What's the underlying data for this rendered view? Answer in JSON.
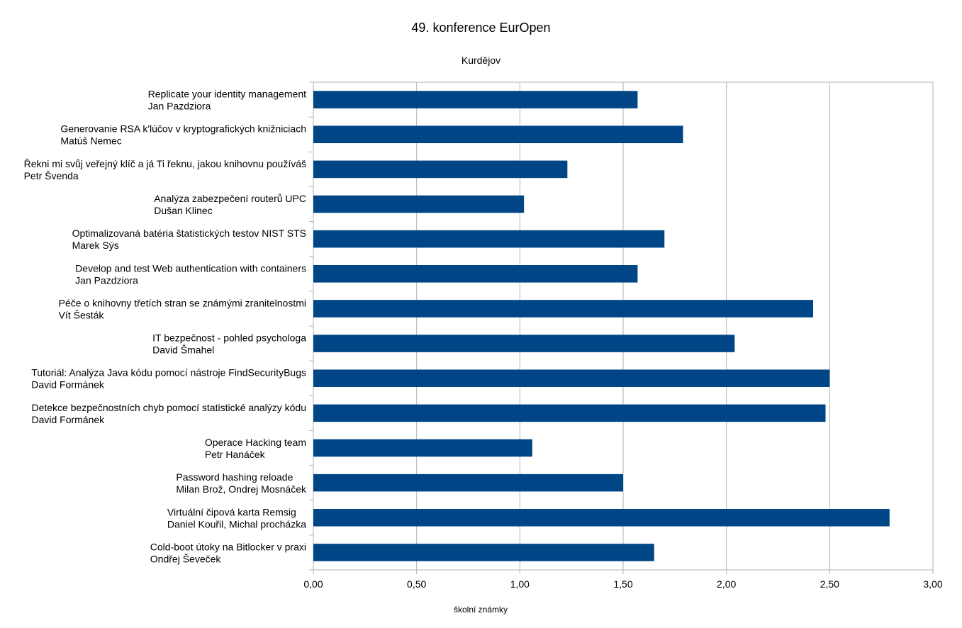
{
  "chart_data": {
    "type": "bar",
    "orientation": "horizontal",
    "title": "49. konference EurOpen",
    "subtitle": "Kurdějov",
    "xlabel": "školní známky",
    "ylabel": "",
    "xlim": [
      0,
      3
    ],
    "x_ticks": [
      "0,00",
      "0,50",
      "1,00",
      "1,50",
      "2,00",
      "2,50",
      "3,00"
    ],
    "grid": true,
    "bar_color": "#004586",
    "categories": [
      [
        "Replicate your identity management",
        "Jan Pazdziora"
      ],
      [
        "Generovanie RSA k'lúčov v kryptografických knižniciach",
        "Matúš Nemec"
      ],
      [
        "Řekni mi svůj veřejný klíč a já Ti řeknu, jakou knihovnu používáš",
        "Petr Švenda"
      ],
      [
        "Analýza zabezpečení routerů UPC",
        "Dušan Klinec"
      ],
      [
        "Optimalizovaná batéria štatistických testov NIST STS",
        "Marek Sýs"
      ],
      [
        "Develop and test Web authentication with containers",
        "Jan Pazdziora"
      ],
      [
        "Péče o knihovny třetích stran se známými zranitelnostmi",
        "Vít Šesták"
      ],
      [
        "IT bezpečnost - pohled psychologa",
        "David Šmahel"
      ],
      [
        "Tutoriál: Analýza Java kódu pomocí nástroje FindSecurityBugs",
        "David Formánek"
      ],
      [
        "Detekce bezpečnostních chyb pomocí statistické analýzy kódu",
        "David Formánek"
      ],
      [
        "Operace Hacking team",
        "Petr Hanáček"
      ],
      [
        "Password hashing reloade",
        "Milan Brož, Ondrej Mosnáček"
      ],
      [
        "Virtuální čipová karta Remsig",
        "Daniel Kouřil, Michal procházka"
      ],
      [
        "Cold-boot útoky na Bitlocker v praxi",
        "Ondřej Ševeček"
      ]
    ],
    "values": [
      1.57,
      1.79,
      1.23,
      1.02,
      1.7,
      1.57,
      2.42,
      2.04,
      2.5,
      2.48,
      1.06,
      1.5,
      2.79,
      1.65
    ]
  }
}
